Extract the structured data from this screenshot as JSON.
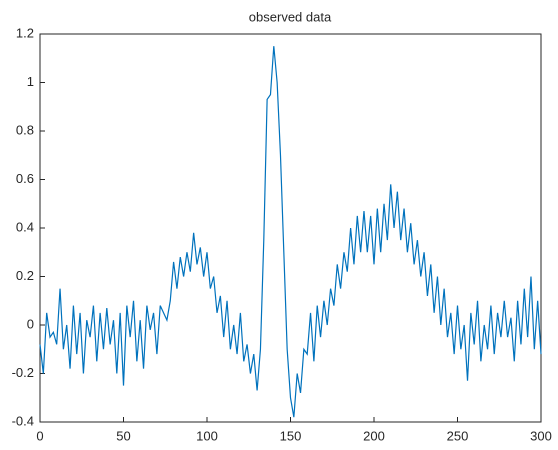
{
  "chart_data": {
    "type": "line",
    "title": "observed data",
    "color": "#0072bd",
    "x": [
      0,
      2,
      4,
      6,
      8,
      10,
      12,
      14,
      16,
      18,
      20,
      22,
      24,
      26,
      28,
      30,
      32,
      34,
      36,
      38,
      40,
      42,
      44,
      46,
      48,
      50,
      52,
      54,
      56,
      58,
      60,
      62,
      64,
      66,
      68,
      70,
      72,
      74,
      76,
      78,
      80,
      82,
      84,
      86,
      88,
      90,
      92,
      94,
      96,
      98,
      100,
      102,
      104,
      106,
      108,
      110,
      112,
      114,
      116,
      118,
      120,
      122,
      124,
      126,
      128,
      130,
      132,
      134,
      136,
      138,
      140,
      142,
      144,
      146,
      148,
      150,
      152,
      154,
      156,
      158,
      160,
      162,
      164,
      166,
      168,
      170,
      172,
      174,
      176,
      178,
      180,
      182,
      184,
      186,
      188,
      190,
      192,
      194,
      196,
      198,
      200,
      202,
      204,
      206,
      208,
      210,
      212,
      214,
      216,
      218,
      220,
      222,
      224,
      226,
      228,
      230,
      232,
      234,
      236,
      238,
      240,
      242,
      244,
      246,
      248,
      250,
      252,
      254,
      256,
      258,
      260,
      262,
      264,
      266,
      268,
      270,
      272,
      274,
      276,
      278,
      280,
      282,
      284,
      286,
      288,
      290,
      292,
      294,
      296,
      298,
      300
    ],
    "values": [
      -0.08,
      -0.2,
      0.05,
      -0.05,
      -0.03,
      -0.08,
      0.15,
      -0.1,
      0.0,
      -0.18,
      0.08,
      -0.12,
      0.05,
      -0.2,
      0.02,
      -0.05,
      0.08,
      -0.15,
      0.05,
      -0.1,
      0.07,
      -0.08,
      0.02,
      -0.2,
      0.05,
      -0.25,
      0.08,
      -0.05,
      0.1,
      -0.15,
      0.02,
      -0.18,
      0.08,
      -0.02,
      0.05,
      -0.12,
      0.08,
      0.05,
      0.02,
      0.1,
      0.26,
      0.15,
      0.28,
      0.2,
      0.3,
      0.22,
      0.38,
      0.25,
      0.32,
      0.2,
      0.3,
      0.15,
      0.2,
      0.05,
      0.12,
      -0.05,
      0.1,
      -0.1,
      0.0,
      -0.12,
      0.05,
      -0.15,
      -0.08,
      -0.2,
      -0.12,
      -0.27,
      -0.1,
      0.35,
      0.93,
      0.95,
      1.15,
      1.0,
      0.7,
      0.3,
      -0.1,
      -0.3,
      -0.38,
      -0.2,
      -0.28,
      -0.1,
      -0.12,
      0.05,
      -0.15,
      0.08,
      -0.05,
      0.1,
      0.0,
      0.15,
      0.08,
      0.25,
      0.15,
      0.3,
      0.22,
      0.4,
      0.25,
      0.45,
      0.3,
      0.47,
      0.3,
      0.45,
      0.25,
      0.48,
      0.3,
      0.5,
      0.35,
      0.58,
      0.4,
      0.55,
      0.35,
      0.48,
      0.3,
      0.42,
      0.25,
      0.35,
      0.2,
      0.3,
      0.12,
      0.25,
      0.05,
      0.2,
      0.0,
      0.15,
      -0.05,
      0.05,
      -0.12,
      0.08,
      -0.1,
      0.0,
      -0.23,
      0.05,
      -0.08,
      0.1,
      -0.15,
      0.0,
      -0.1,
      0.08,
      -0.12,
      0.05,
      -0.05,
      0.1,
      -0.05,
      0.03,
      -0.15,
      0.1,
      -0.08,
      0.15,
      -0.05,
      0.2,
      -0.1,
      0.1,
      -0.12
    ],
    "xlim": [
      0,
      300
    ],
    "xticks": [
      0,
      50,
      100,
      150,
      200,
      250,
      300
    ],
    "ylim": [
      -0.4,
      1.2
    ],
    "yticks": [
      -0.4,
      -0.2,
      0,
      0.2,
      0.4,
      0.6,
      0.8,
      1,
      1.2
    ]
  }
}
